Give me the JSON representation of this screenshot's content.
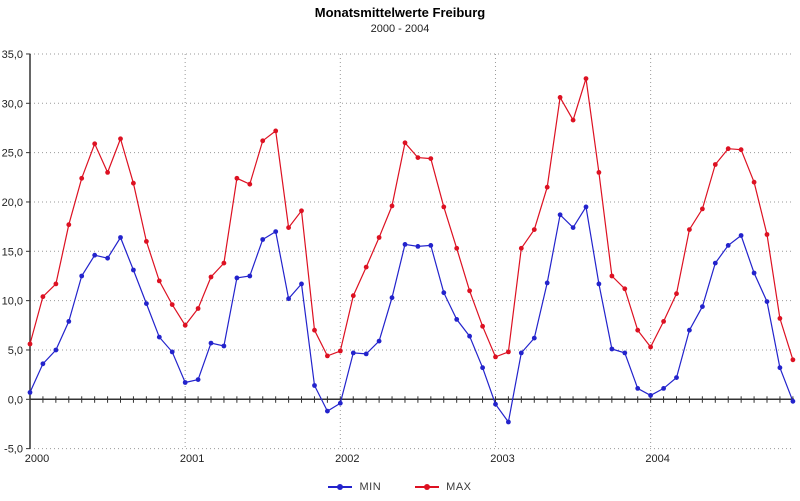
{
  "title": "Monatsmittelwerte Freiburg",
  "subtitle": "2000 - 2004",
  "legend": [
    {
      "label": "MIN",
      "color": "#2323cc"
    },
    {
      "label": "MAX",
      "color": "#dd1122"
    }
  ],
  "chart_data": {
    "type": "line",
    "title": "Monatsmittelwerte Freiburg",
    "subtitle": "2000 - 2004",
    "xlabel": "",
    "ylabel": "",
    "ylim": [
      -5,
      35
    ],
    "y_tick_step": 5,
    "y_tick_labels": [
      "35,0",
      "30,0",
      "25,0",
      "20,0",
      "15,0",
      "10,0",
      "5,0",
      "0,0",
      "-5,0"
    ],
    "x_tick_labels": [
      "2000",
      "2001",
      "2002",
      "2003",
      "2004"
    ],
    "months_per_year": 12,
    "grid": true,
    "legend_position": "bottom-center",
    "series": [
      {
        "name": "MIN",
        "color": "#2323cc",
        "values": [
          0.7,
          3.6,
          5.0,
          7.9,
          12.5,
          14.6,
          14.3,
          16.4,
          13.1,
          9.7,
          6.3,
          4.8,
          1.7,
          2.0,
          5.7,
          5.4,
          12.3,
          12.5,
          16.2,
          17.0,
          10.2,
          11.7,
          1.4,
          -1.2,
          -0.4,
          4.7,
          4.6,
          5.9,
          10.3,
          15.7,
          15.5,
          15.6,
          10.8,
          8.1,
          6.4,
          3.2,
          -0.5,
          -2.3,
          4.7,
          6.2,
          11.8,
          18.7,
          17.4,
          19.5,
          11.7,
          5.1,
          4.7,
          1.1,
          0.4,
          1.1,
          2.2,
          7.0,
          9.4,
          13.8,
          15.6,
          16.6,
          12.8,
          9.9,
          3.2,
          -0.2
        ]
      },
      {
        "name": "MAX",
        "color": "#dd1122",
        "values": [
          5.6,
          10.4,
          11.7,
          17.7,
          22.4,
          25.9,
          23.0,
          26.4,
          21.9,
          16.0,
          12.0,
          9.6,
          7.5,
          9.2,
          12.4,
          13.8,
          22.4,
          21.8,
          26.2,
          27.2,
          17.4,
          19.1,
          7.0,
          4.4,
          4.9,
          10.5,
          13.4,
          16.4,
          19.6,
          26.0,
          24.5,
          24.4,
          19.5,
          15.3,
          11.0,
          7.4,
          4.3,
          4.8,
          15.3,
          17.2,
          21.5,
          30.6,
          28.3,
          32.5,
          23.0,
          12.5,
          11.2,
          7.0,
          5.3,
          7.9,
          10.7,
          17.2,
          19.3,
          23.8,
          25.4,
          25.3,
          22.0,
          16.7,
          8.2,
          4.0
        ]
      }
    ]
  }
}
